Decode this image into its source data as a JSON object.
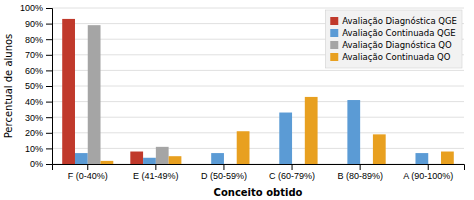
{
  "chart_data": {
    "type": "bar",
    "xlabel": "Conceito obtido",
    "ylabel": "Percentual de alunos",
    "categories": [
      "F (0-40%)",
      "E (41-49%)",
      "D (50-59%)",
      "C (60-79%)",
      "B (80-89%)",
      "A (90-100%)"
    ],
    "series": [
      {
        "name": "Avaliação Diagnóstica QGE",
        "color": "#c0392b",
        "values": [
          93,
          8,
          0,
          0,
          0,
          0
        ]
      },
      {
        "name": "Avaliação Continuada QGE",
        "color": "#5b9bd5",
        "values": [
          7,
          4,
          7,
          33,
          41,
          7
        ]
      },
      {
        "name": "Avaliação Diagnóstica QO",
        "color": "#a5a5a5",
        "values": [
          89,
          11,
          0,
          0,
          0,
          0
        ]
      },
      {
        "name": "Avaliação Continuada QO",
        "color": "#e8a020",
        "values": [
          2,
          5,
          21,
          43,
          19,
          8
        ]
      }
    ],
    "ylim": [
      0,
      100
    ],
    "yticks": [
      {
        "value": 0,
        "label": "0%"
      },
      {
        "value": 10,
        "label": "10%"
      },
      {
        "value": 20,
        "label": "20%"
      },
      {
        "value": 30,
        "label": "30%"
      },
      {
        "value": 40,
        "label": "40%"
      },
      {
        "value": 50,
        "label": "50%"
      },
      {
        "value": 60,
        "label": "60%"
      },
      {
        "value": 70,
        "label": "70%"
      },
      {
        "value": 80,
        "label": "80%"
      },
      {
        "value": 90,
        "label": "90%"
      },
      {
        "value": 100,
        "label": "100%"
      }
    ],
    "grid": true,
    "legend": "upper right"
  }
}
